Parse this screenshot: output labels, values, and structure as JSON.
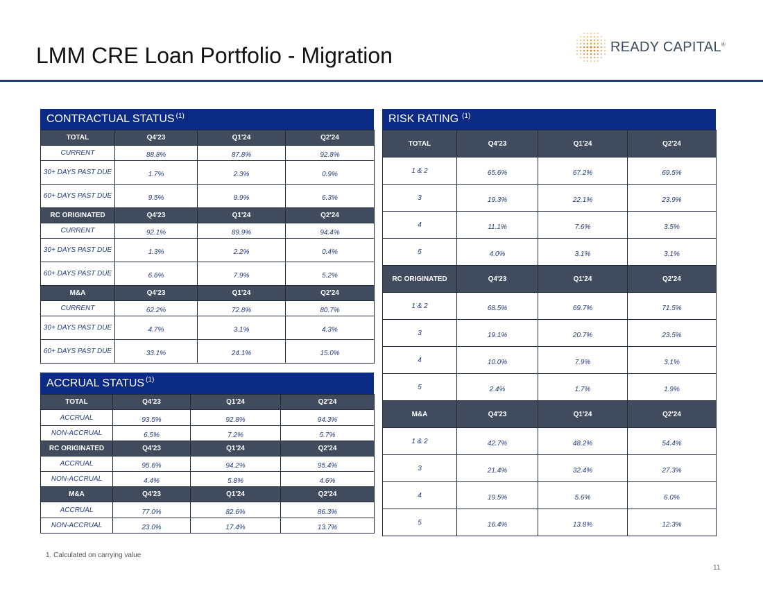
{
  "page": {
    "title": "LMM CRE Loan Portfolio - Migration",
    "logo_text": "READY CAPITAL",
    "logo_mark": "®",
    "footnote": "1. Calculated on carrying value",
    "page_number": "11"
  },
  "contractual": {
    "title": "CONTRACTUAL STATUS",
    "sup": "(1)",
    "blocks": [
      {
        "header": [
          "TOTAL",
          "Q4'23",
          "Q1'24",
          "Q2'24"
        ],
        "rows": [
          [
            "CURRENT",
            "88.8%",
            "87.8%",
            "92.8%"
          ],
          [
            "30+ DAYS PAST DUE",
            "1.7%",
            "2.3%",
            "0.9%"
          ],
          [
            "60+ DAYS PAST DUE",
            "9.5%",
            "9.9%",
            "6.3%"
          ]
        ]
      },
      {
        "header": [
          "RC ORIGINATED",
          "Q4'23",
          "Q1'24",
          "Q2'24"
        ],
        "rows": [
          [
            "CURRENT",
            "92.1%",
            "89.9%",
            "94.4%"
          ],
          [
            "30+ DAYS PAST DUE",
            "1.3%",
            "2.2%",
            "0.4%"
          ],
          [
            "60+ DAYS PAST DUE",
            "6.6%",
            "7.9%",
            "5.2%"
          ]
        ]
      },
      {
        "header": [
          "M&A",
          "Q4'23",
          "Q1'24",
          "Q2'24"
        ],
        "rows": [
          [
            "CURRENT",
            "62.2%",
            "72.8%",
            "80.7%"
          ],
          [
            "30+ DAYS PAST DUE",
            "4.7%",
            "3.1%",
            "4.3%"
          ],
          [
            "60+ DAYS PAST DUE",
            "33.1%",
            "24.1%",
            "15.0%"
          ]
        ]
      }
    ]
  },
  "accrual": {
    "title": "ACCRUAL STATUS",
    "sup": "(1)",
    "blocks": [
      {
        "header": [
          "TOTAL",
          "Q4'23",
          "Q1'24",
          "Q2'24"
        ],
        "rows": [
          [
            "ACCRUAL",
            "93.5%",
            "92.8%",
            "94.3%"
          ],
          [
            "NON-ACCRUAL",
            "6.5%",
            "7.2%",
            "5.7%"
          ]
        ]
      },
      {
        "header": [
          "RC ORIGINATED",
          "Q4'23",
          "Q1'24",
          "Q2'24"
        ],
        "rows": [
          [
            "ACCRUAL",
            "95.6%",
            "94.2%",
            "95.4%"
          ],
          [
            "NON-ACCRUAL",
            "4.4%",
            "5.8%",
            "4.6%"
          ]
        ]
      },
      {
        "header": [
          "M&A",
          "Q4'23",
          "Q1'24",
          "Q2'24"
        ],
        "rows": [
          [
            "ACCRUAL",
            "77.0%",
            "82.6%",
            "86.3%"
          ],
          [
            "NON-ACCRUAL",
            "23.0%",
            "17.4%",
            "13.7%"
          ]
        ]
      }
    ]
  },
  "risk": {
    "title": "RISK RATING",
    "sup": "(1)",
    "blocks": [
      {
        "header": [
          "TOTAL",
          "Q4'23",
          "Q1'24",
          "Q2'24"
        ],
        "rows": [
          [
            "1 & 2",
            "65.6%",
            "67.2%",
            "69.5%"
          ],
          [
            "3",
            "19.3%",
            "22.1%",
            "23.9%"
          ],
          [
            "4",
            "11.1%",
            "7.6%",
            "3.5%"
          ],
          [
            "5",
            "4.0%",
            "3.1%",
            "3.1%"
          ]
        ]
      },
      {
        "header": [
          "RC ORIGINATED",
          "Q4'23",
          "Q1'24",
          "Q2'24"
        ],
        "rows": [
          [
            "1 & 2",
            "68.5%",
            "69.7%",
            "71.5%"
          ],
          [
            "3",
            "19.1%",
            "20.7%",
            "23.5%"
          ],
          [
            "4",
            "10.0%",
            "7.9%",
            "3.1%"
          ],
          [
            "5",
            "2.4%",
            "1.7%",
            "1.9%"
          ]
        ]
      },
      {
        "header": [
          "M&A",
          "Q4'23",
          "Q1'24",
          "Q2'24"
        ],
        "rows": [
          [
            "1 & 2",
            "42.7%",
            "48.2%",
            "54.4%"
          ],
          [
            "3",
            "21.4%",
            "32.4%",
            "27.3%"
          ],
          [
            "4",
            "19.5%",
            "5.6%",
            "6.0%"
          ],
          [
            "5",
            "16.4%",
            "13.8%",
            "12.3%"
          ]
        ]
      }
    ]
  }
}
